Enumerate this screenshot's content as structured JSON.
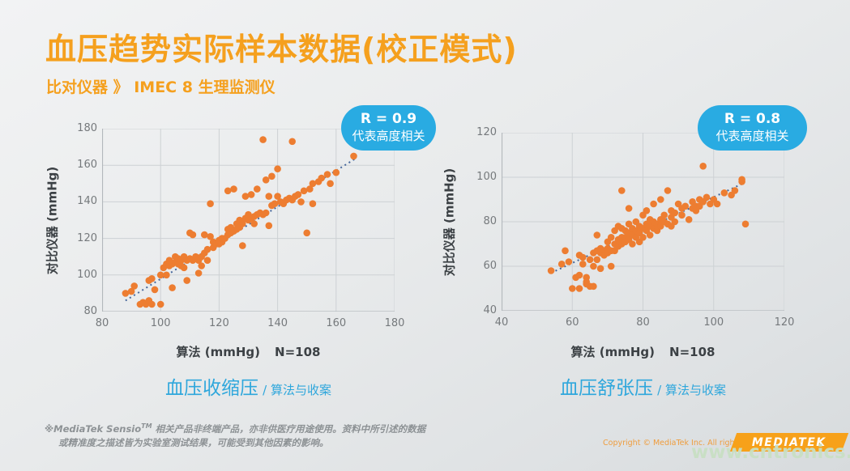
{
  "slide": {
    "title": "血压趋势实际样本数据(校正模式)",
    "subtitle": "比对仪器 》 IMEC 8 生理监测仪"
  },
  "colors": {
    "accent_orange": "#F5A01E",
    "badge_blue": "#29ABE2",
    "caption_blue": "#2FA7DC",
    "point_orange": "#ED7D31",
    "trend_blue": "#46679B",
    "footer_gray": "#8D9295",
    "logo_orange": "#F7A11A",
    "watermark_green": "#C9E0C4",
    "tick_gray": "#75797C",
    "axis_text": "#3C4145",
    "copyright_orange": "#EF9D3E"
  },
  "chart_data": [
    {
      "type": "scatter",
      "caption_main": "血压收缩压",
      "caption_sub": "/ 算法与收案",
      "badge": {
        "line1": "R = 0.9",
        "line2": "代表高度相关"
      },
      "r_value": 0.9,
      "xlabel": "算法 (mmHg)",
      "n_label": "N=108",
      "ylabel": "对比仪器 (mmHg)",
      "xlim": [
        80,
        180
      ],
      "ylim": [
        80,
        180
      ],
      "xticks": [
        80,
        100,
        120,
        140,
        160,
        180
      ],
      "yticks": [
        80,
        100,
        120,
        140,
        160,
        180
      ],
      "grid": true,
      "trend": [
        [
          88,
          86
        ],
        [
          167,
          164
        ]
      ],
      "points": [
        [
          88,
          90
        ],
        [
          90,
          91
        ],
        [
          91,
          94
        ],
        [
          93,
          84
        ],
        [
          94,
          85
        ],
        [
          95,
          84
        ],
        [
          96,
          86
        ],
        [
          97,
          84
        ],
        [
          96,
          97
        ],
        [
          97,
          98
        ],
        [
          98,
          92
        ],
        [
          100,
          84
        ],
        [
          100,
          100
        ],
        [
          101,
          104
        ],
        [
          102,
          100
        ],
        [
          102,
          106
        ],
        [
          103,
          105
        ],
        [
          103,
          108
        ],
        [
          104,
          106
        ],
        [
          104,
          93
        ],
        [
          105,
          107
        ],
        [
          105,
          110
        ],
        [
          106,
          106
        ],
        [
          106,
          109
        ],
        [
          107,
          105
        ],
        [
          107,
          108
        ],
        [
          108,
          104
        ],
        [
          108,
          110
        ],
        [
          109,
          97
        ],
        [
          109,
          108
        ],
        [
          110,
          109
        ],
        [
          110,
          123
        ],
        [
          111,
          108
        ],
        [
          111,
          122
        ],
        [
          112,
          110
        ],
        [
          113,
          101
        ],
        [
          113,
          108
        ],
        [
          114,
          110
        ],
        [
          114,
          105
        ],
        [
          115,
          112
        ],
        [
          115,
          122
        ],
        [
          116,
          108
        ],
        [
          116,
          114
        ],
        [
          117,
          121
        ],
        [
          117,
          139
        ],
        [
          118,
          115
        ],
        [
          118,
          118
        ],
        [
          119,
          117
        ],
        [
          120,
          117
        ],
        [
          120,
          119
        ],
        [
          121,
          118
        ],
        [
          121,
          120
        ],
        [
          122,
          120
        ],
        [
          123,
          122
        ],
        [
          123,
          125
        ],
        [
          123,
          146
        ],
        [
          124,
          123
        ],
        [
          124,
          126
        ],
        [
          125,
          124
        ],
        [
          125,
          147
        ],
        [
          126,
          125
        ],
        [
          126,
          128
        ],
        [
          127,
          126
        ],
        [
          127,
          130
        ],
        [
          128,
          128
        ],
        [
          128,
          116
        ],
        [
          129,
          131
        ],
        [
          129,
          143
        ],
        [
          130,
          130
        ],
        [
          130,
          133
        ],
        [
          131,
          131
        ],
        [
          131,
          144
        ],
        [
          132,
          132
        ],
        [
          132,
          128
        ],
        [
          133,
          133
        ],
        [
          133,
          147
        ],
        [
          134,
          134
        ],
        [
          135,
          174
        ],
        [
          135,
          133
        ],
        [
          136,
          134
        ],
        [
          136,
          152
        ],
        [
          137,
          143
        ],
        [
          137,
          127
        ],
        [
          138,
          138
        ],
        [
          138,
          154
        ],
        [
          139,
          139
        ],
        [
          140,
          143
        ],
        [
          140,
          158
        ],
        [
          141,
          140
        ],
        [
          142,
          139
        ],
        [
          143,
          141
        ],
        [
          144,
          142
        ],
        [
          145,
          173
        ],
        [
          145,
          141
        ],
        [
          146,
          143
        ],
        [
          147,
          144
        ],
        [
          148,
          140
        ],
        [
          149,
          146
        ],
        [
          150,
          123
        ],
        [
          151,
          147
        ],
        [
          152,
          150
        ],
        [
          152,
          139
        ],
        [
          154,
          151
        ],
        [
          155,
          153
        ],
        [
          157,
          155
        ],
        [
          158,
          150
        ],
        [
          160,
          156
        ],
        [
          166,
          165
        ]
      ]
    },
    {
      "type": "scatter",
      "caption_main": "血压舒张压",
      "caption_sub": "/ 算法与收案",
      "badge": {
        "line1": "R = 0.8",
        "line2": "代表高度相关"
      },
      "r_value": 0.8,
      "xlabel": "算法 (mmHg)",
      "n_label": "N=108",
      "ylabel": "对比仪器 (mmHg)",
      "xlim": [
        40,
        120
      ],
      "ylim": [
        40,
        120
      ],
      "xticks": [
        40,
        60,
        80,
        100,
        120
      ],
      "yticks": [
        40,
        60,
        80,
        100,
        120
      ],
      "grid": true,
      "trend": [
        [
          54,
          57
        ],
        [
          108,
          97
        ]
      ],
      "points": [
        [
          54,
          58
        ],
        [
          57,
          61
        ],
        [
          58,
          67
        ],
        [
          59,
          62
        ],
        [
          60,
          50
        ],
        [
          61,
          55
        ],
        [
          62,
          56
        ],
        [
          62,
          65
        ],
        [
          63,
          64
        ],
        [
          63,
          61
        ],
        [
          64,
          52
        ],
        [
          64,
          55
        ],
        [
          65,
          51
        ],
        [
          65,
          63
        ],
        [
          66,
          60
        ],
        [
          66,
          66
        ],
        [
          67,
          67
        ],
        [
          67,
          63
        ],
        [
          67,
          74
        ],
        [
          68,
          66
        ],
        [
          68,
          68
        ],
        [
          68,
          59
        ],
        [
          69,
          67
        ],
        [
          69,
          65
        ],
        [
          70,
          68
        ],
        [
          70,
          71
        ],
        [
          70,
          66
        ],
        [
          71,
          67
        ],
        [
          71,
          73
        ],
        [
          71,
          60
        ],
        [
          72,
          70
        ],
        [
          72,
          76
        ],
        [
          72,
          67
        ],
        [
          73,
          72
        ],
        [
          73,
          69
        ],
        [
          73,
          78
        ],
        [
          74,
          73
        ],
        [
          74,
          70
        ],
        [
          74,
          77
        ],
        [
          74,
          94
        ],
        [
          75,
          73
        ],
        [
          75,
          76
        ],
        [
          75,
          71
        ],
        [
          76,
          75
        ],
        [
          76,
          72
        ],
        [
          76,
          79
        ],
        [
          76,
          86
        ],
        [
          77,
          74
        ],
        [
          77,
          77
        ],
        [
          77,
          70
        ],
        [
          78,
          76
        ],
        [
          78,
          73
        ],
        [
          78,
          80
        ],
        [
          79,
          75
        ],
        [
          79,
          78
        ],
        [
          79,
          71
        ],
        [
          80,
          77
        ],
        [
          80,
          83
        ],
        [
          80,
          73
        ],
        [
          81,
          79
        ],
        [
          81,
          76
        ],
        [
          81,
          85
        ],
        [
          82,
          78
        ],
        [
          82,
          74
        ],
        [
          82,
          81
        ],
        [
          83,
          80
        ],
        [
          83,
          77
        ],
        [
          83,
          88
        ],
        [
          84,
          79
        ],
        [
          84,
          76
        ],
        [
          85,
          81
        ],
        [
          85,
          78
        ],
        [
          85,
          90
        ],
        [
          86,
          80
        ],
        [
          86,
          83
        ],
        [
          87,
          79
        ],
        [
          87,
          94
        ],
        [
          88,
          82
        ],
        [
          88,
          78
        ],
        [
          88,
          85
        ],
        [
          89,
          84
        ],
        [
          89,
          80
        ],
        [
          90,
          88
        ],
        [
          91,
          86
        ],
        [
          91,
          83
        ],
        [
          92,
          87
        ],
        [
          93,
          81
        ],
        [
          94,
          86
        ],
        [
          94,
          89
        ],
        [
          95,
          87
        ],
        [
          95,
          85
        ],
        [
          96,
          90
        ],
        [
          96,
          87
        ],
        [
          97,
          105
        ],
        [
          97,
          89
        ],
        [
          98,
          91
        ],
        [
          99,
          88
        ],
        [
          100,
          90
        ],
        [
          101,
          88
        ],
        [
          103,
          93
        ],
        [
          105,
          92
        ],
        [
          106,
          94
        ],
        [
          108,
          99
        ],
        [
          108,
          98
        ],
        [
          109,
          79
        ],
        [
          62,
          50
        ],
        [
          64,
          53
        ],
        [
          66,
          51
        ]
      ]
    }
  ],
  "footer": {
    "disclaimer_pre": "※MediaTek Sensio",
    "disclaimer_sup": "TM",
    "disclaimer_post": " 相关产品非终端产品，亦非供医疗用途使用。资料中所引述的数据",
    "disclaimer_line2": "或精准度之描述皆为实验室测试结果，可能受到其他因素的影响。"
  },
  "branding": {
    "copyright": "Copyright © MediaTek Inc. All rights reserved",
    "logo_text": "MEDIATEK",
    "watermark": "www.cntronics.com"
  }
}
